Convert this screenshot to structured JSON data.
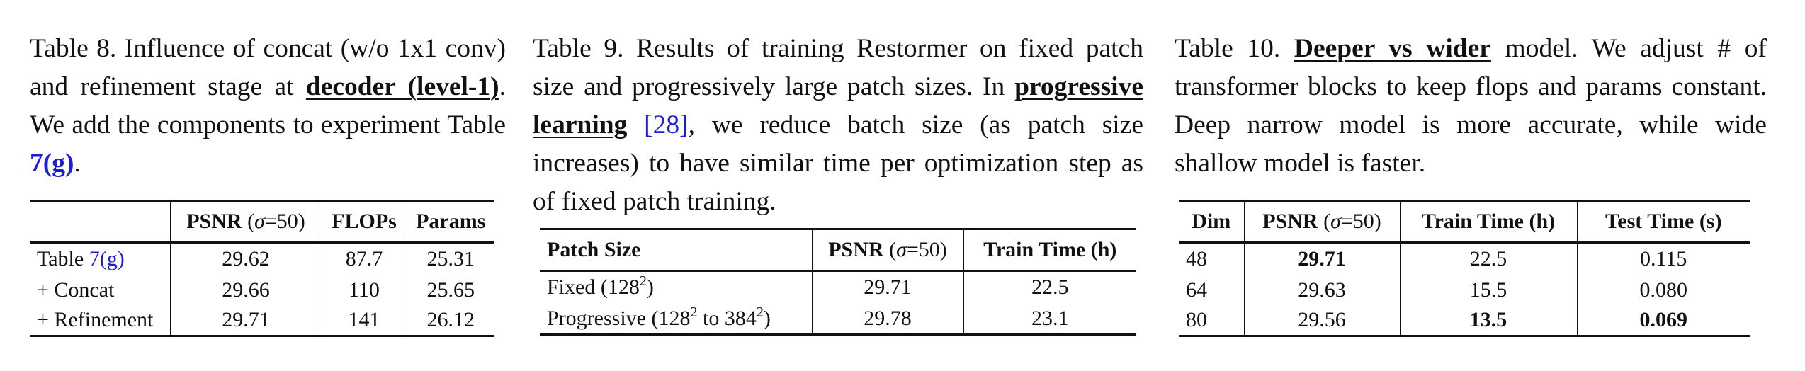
{
  "table8": {
    "caption": {
      "p1": "Table 8.  Influence of concat (w/o 1x1 conv) and refinement stage at ",
      "bold": "decoder (level-1)",
      "p2": ".  We add the components to experiment Table ",
      "ref": "7(g)",
      "p3": "."
    },
    "headers": {
      "empty": "",
      "psnr": "PSNR",
      "psnr_cond_open": " (",
      "sigma": "σ",
      "psnr_cond_close": "=50)",
      "flops": "FLOPs",
      "params": "Params"
    },
    "rows": [
      {
        "label_pre": "Table ",
        "label_ref": "7(g)",
        "psnr": "29.62",
        "flops": "87.7",
        "params": "25.31"
      },
      {
        "label_pre": "+ Concat",
        "label_ref": "",
        "psnr": "29.66",
        "flops": "110",
        "params": "25.65"
      },
      {
        "label_pre": "+ Refinement",
        "label_ref": "",
        "psnr": "29.71",
        "flops": "141",
        "params": "26.12"
      }
    ]
  },
  "table9": {
    "caption": {
      "p1": "Table 9.  Results of training Restormer on fixed patch size and progressively large patch sizes.  In ",
      "bold": "progressive learning",
      "space": " ",
      "ref": "[28]",
      "p2": ", we reduce batch size (as patch size increases) to have similar time per optimization step as of fixed patch training."
    },
    "headers": {
      "patch": "Patch Size",
      "psnr": "PSNR",
      "psnr_cond_open": " (",
      "sigma": "σ",
      "psnr_cond_close": "=50)",
      "train": "Train Time (h)"
    },
    "rows": [
      {
        "label_a": "Fixed (128",
        "sup_a": "2",
        "label_b": ")",
        "sup_b": "",
        "label_c": "",
        "psnr": "29.71",
        "train": "22.5"
      },
      {
        "label_a": "Progressive (128",
        "sup_a": "2",
        "label_b": " to 384",
        "sup_b": "2",
        "label_c": ")",
        "psnr": "29.78",
        "train": "23.1"
      }
    ]
  },
  "table10": {
    "caption": {
      "p1": "Table 10.  ",
      "bold": "Deeper vs wider",
      "p2": " model.  We adjust # of transformer blocks to keep flops and params constant.  Deep narrow model is more accurate, while wide shallow model is faster."
    },
    "headers": {
      "dim": "Dim",
      "psnr": "PSNR",
      "psnr_cond_open": " (",
      "sigma": "σ",
      "psnr_cond_close": "=50)",
      "train": "Train Time (h)",
      "test": "Test Time (s)"
    },
    "rows": [
      {
        "dim": "48",
        "psnr": "29.71",
        "train": "22.5",
        "test": "0.115"
      },
      {
        "dim": "64",
        "psnr": "29.63",
        "train": "15.5",
        "test": "0.080"
      },
      {
        "dim": "80",
        "psnr": "29.56",
        "train": "13.5",
        "test": "0.069"
      }
    ]
  }
}
